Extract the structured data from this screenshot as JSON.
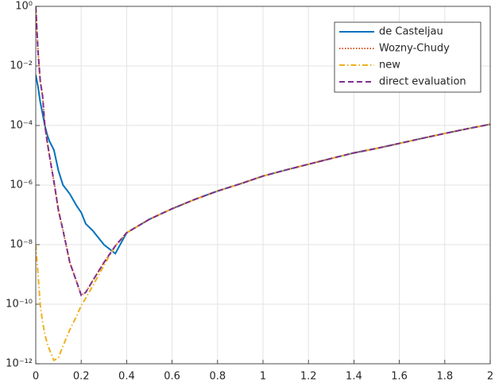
{
  "chart_data": {
    "type": "line",
    "x": [
      0,
      0.01,
      0.02,
      0.03,
      0.04,
      0.05,
      0.06,
      0.08,
      0.1,
      0.12,
      0.15,
      0.18,
      0.2,
      0.22,
      0.25,
      0.3,
      0.35,
      0.4,
      0.5,
      0.6,
      0.7,
      0.8,
      0.9,
      1.0,
      1.1,
      1.2,
      1.3,
      1.4,
      1.5,
      1.6,
      1.7,
      1.8,
      1.9,
      2.0
    ],
    "series": [
      {
        "name": "de Casteljau",
        "color": "#0072bd",
        "dash": "solid",
        "values": [
          0.005,
          0.002,
          0.0006,
          0.00025,
          0.0001,
          5e-05,
          3e-05,
          1.5e-05,
          3e-06,
          1e-06,
          5e-07,
          2e-07,
          1.2e-07,
          5e-08,
          3e-08,
          1e-08,
          5e-09,
          2.5e-08,
          7.1e-08,
          1.6e-07,
          3.3e-07,
          6.3e-07,
          1.1e-06,
          2e-06,
          3.2e-06,
          5e-06,
          7.8e-06,
          1.2e-05,
          1.7e-05,
          2.5e-05,
          3.7e-05,
          5.4e-05,
          7.8e-05,
          0.00011
        ]
      },
      {
        "name": "Wozny-Chudy",
        "color": "#d95319",
        "dash": "dotted",
        "values": [
          1,
          0.03,
          0.003,
          0.001,
          0.0001,
          3e-05,
          1e-05,
          1.3e-06,
          1.4e-07,
          3e-08,
          2.5e-09,
          5.6e-10,
          2e-10,
          2.5e-10,
          6e-10,
          2.5e-09,
          9e-09,
          2.5e-08,
          7.1e-08,
          1.6e-07,
          3.3e-07,
          6.3e-07,
          1.1e-06,
          2e-06,
          3.2e-06,
          5e-06,
          7.8e-06,
          1.2e-05,
          1.7e-05,
          2.5e-05,
          3.7e-05,
          5.4e-05,
          7.8e-05,
          0.00011
        ]
      },
      {
        "name": "new",
        "color": "#edb120",
        "dash": "dashdot",
        "values": [
          1e-08,
          1e-09,
          9e-11,
          2.5e-11,
          1e-11,
          5e-12,
          3e-12,
          1.3e-12,
          1.6e-12,
          4e-12,
          1.4e-11,
          4e-11,
          9e-11,
          1.6e-10,
          4e-10,
          2e-09,
          9e-09,
          2.5e-08,
          7.1e-08,
          1.6e-07,
          3.3e-07,
          6.3e-07,
          1.1e-06,
          2e-06,
          3.2e-06,
          5e-06,
          7.8e-06,
          1.2e-05,
          1.7e-05,
          2.5e-05,
          3.7e-05,
          5.4e-05,
          7.8e-05,
          0.00011
        ]
      },
      {
        "name": "direct evaluation",
        "color": "#7e2f8e",
        "dash": "dashed",
        "values": [
          1,
          0.03,
          0.003,
          0.001,
          0.0001,
          3e-05,
          1e-05,
          1.3e-06,
          1.4e-07,
          3e-08,
          2.5e-09,
          5.6e-10,
          2e-10,
          2.5e-10,
          6e-10,
          2.5e-09,
          9e-09,
          2.5e-08,
          7.1e-08,
          1.6e-07,
          3.3e-07,
          6.3e-07,
          1.1e-06,
          2e-06,
          3.2e-06,
          5e-06,
          7.8e-06,
          1.2e-05,
          1.7e-05,
          2.5e-05,
          3.7e-05,
          5.4e-05,
          7.8e-05,
          0.00011
        ]
      }
    ],
    "xlim": [
      0,
      2
    ],
    "xticks": [
      0,
      0.2,
      0.4,
      0.6,
      0.8,
      1,
      1.2,
      1.4,
      1.6,
      1.8,
      2
    ],
    "ylim": [
      1e-12,
      1
    ],
    "y_scale": "log",
    "yticks": [
      {
        "value": 1e-12,
        "label": "10⁻¹²"
      },
      {
        "value": 1e-10,
        "label": "10⁻¹⁰"
      },
      {
        "value": 1e-08,
        "label": "10⁻⁸"
      },
      {
        "value": 1e-06,
        "label": "10⁻⁶"
      },
      {
        "value": 0.0001,
        "label": "10⁻⁴"
      },
      {
        "value": 0.01,
        "label": "10⁻²"
      },
      {
        "value": 1,
        "label": "10⁰"
      }
    ],
    "grid": true,
    "legend": "top-right"
  }
}
